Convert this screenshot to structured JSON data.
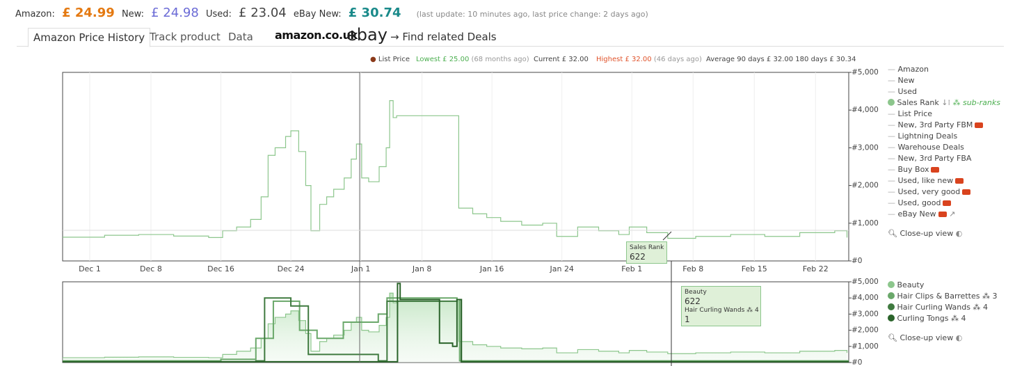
{
  "header": {
    "amazon_label": "Amazon:",
    "amazon_price": "£ 24.99",
    "new_label": "New:",
    "new_price": "£ 24.98",
    "used_label": "Used:",
    "used_price": "£ 23.04",
    "ebay_label": "eBay New:",
    "ebay_price": "£ 30.74",
    "update_note": "(last update: 10 minutes ago,  last price change: 2 days ago)"
  },
  "tabs": [
    "Amazon Price History",
    "Track product",
    "Data"
  ],
  "logos": {
    "amazon": "amazon.co.uk",
    "ebay": "ebay"
  },
  "deals_link": "→ Find related Deals",
  "stats": {
    "list_price": "List Price",
    "lowest": "Lowest £ 25.00",
    "lowest_when": "(68 months ago)",
    "current": "Current £ 32.00",
    "highest": "Highest £ 32.00",
    "highest_when": "(46 days ago)",
    "average": "Average 90 days £ 32.00",
    "average_180": "180 days £ 30.34"
  },
  "legend_items": [
    {
      "name": "Amazon"
    },
    {
      "name": "New"
    },
    {
      "name": "Used"
    },
    {
      "name": "Sales Rank",
      "marker": "dot",
      "sub": "sub-ranks"
    },
    {
      "name": "List Price"
    },
    {
      "name": "New, 3rd Party FBM",
      "truck": true
    },
    {
      "name": "Lightning Deals"
    },
    {
      "name": "Warehouse Deals"
    },
    {
      "name": "New, 3rd Party FBA"
    },
    {
      "name": "Buy Box",
      "truck": true
    },
    {
      "name": "Used, like new",
      "truck": true
    },
    {
      "name": "Used, very good",
      "truck": true
    },
    {
      "name": "Used, good",
      "truck": true
    },
    {
      "name": "eBay New",
      "truck": true,
      "link": true
    }
  ],
  "close_up": "Close-up view",
  "sub_counts": [
    "3",
    "4",
    "4"
  ],
  "tooltip_main": {
    "title": "Sales Rank",
    "value": "622"
  },
  "tooltip_sub": {
    "title": "Beauty",
    "value": "622",
    "sub_title": "Hair Curling Wands",
    "sub_count": "4",
    "sub_value": "1"
  },
  "chart_data": [
    {
      "type": "line",
      "grid": true,
      "xlim": [
        -3.1,
        86.8
      ],
      "xticks": [
        {
          "value": 0,
          "label": "Dec 1"
        },
        {
          "value": 7,
          "label": "Dec 8"
        },
        {
          "value": 15,
          "label": "Dec 16"
        },
        {
          "value": 23,
          "label": "Dec 24"
        },
        {
          "value": 31,
          "label": "Jan 1"
        },
        {
          "value": 38,
          "label": "Jan 8"
        },
        {
          "value": 46,
          "label": "Jan 16"
        },
        {
          "value": 54,
          "label": "Jan 24"
        },
        {
          "value": 62,
          "label": "Feb 1"
        },
        {
          "value": 69,
          "label": "Feb 8"
        },
        {
          "value": 76,
          "label": "Feb 15"
        },
        {
          "value": 83,
          "label": "Feb 22"
        }
      ],
      "ylim": [
        0,
        5000
      ],
      "yticks": [
        {
          "value": 0,
          "label": "#0"
        },
        {
          "value": 1000,
          "label": "#1,000"
        },
        {
          "value": 2000,
          "label": "#2,000"
        },
        {
          "value": 3000,
          "label": "#3,000"
        },
        {
          "value": 4000,
          "label": "#4,000"
        },
        {
          "value": 5000,
          "label": "#5,000"
        }
      ],
      "series": [
        {
          "name": "Sales Rank",
          "color": "#8cc68c",
          "x": [
            -3.1,
            1.7,
            5.6,
            9.6,
            13.6,
            15.2,
            16.8,
            18.4,
            19.6,
            20.4,
            21.2,
            22.4,
            23,
            23.9,
            24.7,
            25.3,
            26.3,
            27.1,
            27.9,
            29.1,
            29.9,
            30.5,
            31.1,
            31.9,
            33.1,
            33.9,
            34.3,
            34.7,
            35.1,
            41.8,
            42.2,
            43.8,
            45.4,
            47,
            49.4,
            51.8,
            53.4,
            55.8,
            58.2,
            60.5,
            61.7,
            63.7,
            66.1,
            69.3,
            73.3,
            77.2,
            81.2,
            85.2,
            86.6
          ],
          "values": [
            630,
            680,
            700,
            660,
            620,
            800,
            900,
            1100,
            1700,
            2800,
            3000,
            3300,
            3450,
            2900,
            2000,
            800,
            1500,
            1700,
            1900,
            2200,
            2700,
            3100,
            2200,
            2100,
            2500,
            3000,
            4250,
            3800,
            3850,
            3850,
            1400,
            1250,
            1150,
            1050,
            950,
            1000,
            650,
            900,
            800,
            700,
            900,
            750,
            600,
            650,
            700,
            650,
            750,
            800,
            620
          ]
        }
      ]
    },
    {
      "type": "line",
      "grid": false,
      "xlim": [
        -3.1,
        86.8
      ],
      "ylim": [
        0,
        5000
      ],
      "yticks": [
        {
          "value": 0,
          "label": "#0"
        },
        {
          "value": 1000,
          "label": "#1,000"
        },
        {
          "value": 2000,
          "label": "#2,000"
        },
        {
          "value": 3000,
          "label": "#3,000"
        },
        {
          "value": 4000,
          "label": "#4,000"
        },
        {
          "value": 5000,
          "label": "#5,000"
        }
      ],
      "series": [
        {
          "name": "Beauty",
          "color": "#8cc68c",
          "fill": true,
          "x": [
            -3.1,
            1.7,
            5.6,
            9.6,
            13.6,
            15.2,
            16.8,
            18.4,
            19.6,
            20.4,
            21.2,
            22.4,
            23,
            23.9,
            24.7,
            25.3,
            26.3,
            27.1,
            27.9,
            29.1,
            29.9,
            30.5,
            31.1,
            31.9,
            33.1,
            33.9,
            34.3,
            34.7,
            35.1,
            41.8,
            42.2,
            43.8,
            45.4,
            47,
            49.4,
            51.8,
            53.4,
            55.8,
            58.2,
            60.5,
            61.7,
            63.7,
            66.1,
            69.3,
            73.3,
            77.2,
            81.2,
            85.2,
            86.6
          ],
          "values": [
            300,
            330,
            350,
            320,
            300,
            500,
            700,
            900,
            1500,
            2400,
            2800,
            3000,
            3200,
            2600,
            1800,
            700,
            1300,
            1500,
            1700,
            2000,
            2500,
            2800,
            2000,
            1900,
            2300,
            2800,
            4300,
            3700,
            3800,
            3800,
            1300,
            1100,
            1000,
            900,
            850,
            900,
            600,
            800,
            700,
            600,
            750,
            650,
            550,
            600,
            650,
            600,
            700,
            750,
            600
          ]
        },
        {
          "name": "Hair Clips & Barrettes",
          "color": "#6aa86a",
          "x": [
            -3.1,
            15,
            19,
            21,
            24,
            26,
            29,
            33,
            34,
            42,
            42.3,
            86.8
          ],
          "values": [
            100,
            200,
            1500,
            3800,
            2000,
            1500,
            2500,
            3000,
            4000,
            3900,
            100,
            100
          ]
        },
        {
          "name": "Hair Curling Wands",
          "color": "#3f7a3f",
          "x": [
            -3.1,
            19,
            20,
            23,
            25,
            33,
            34,
            42,
            42.5,
            86.8
          ],
          "values": [
            50,
            100,
            4000,
            3500,
            500,
            100,
            3800,
            3900,
            50,
            50
          ]
        },
        {
          "name": "Curling Tongs",
          "color": "#2a632a",
          "x": [
            -3.1,
            35,
            35.2,
            35.5,
            38,
            40,
            41.5,
            42,
            42.5,
            86.8
          ],
          "values": [
            50,
            50,
            4900,
            3900,
            3900,
            1200,
            1000,
            3900,
            50,
            50
          ]
        }
      ]
    }
  ]
}
